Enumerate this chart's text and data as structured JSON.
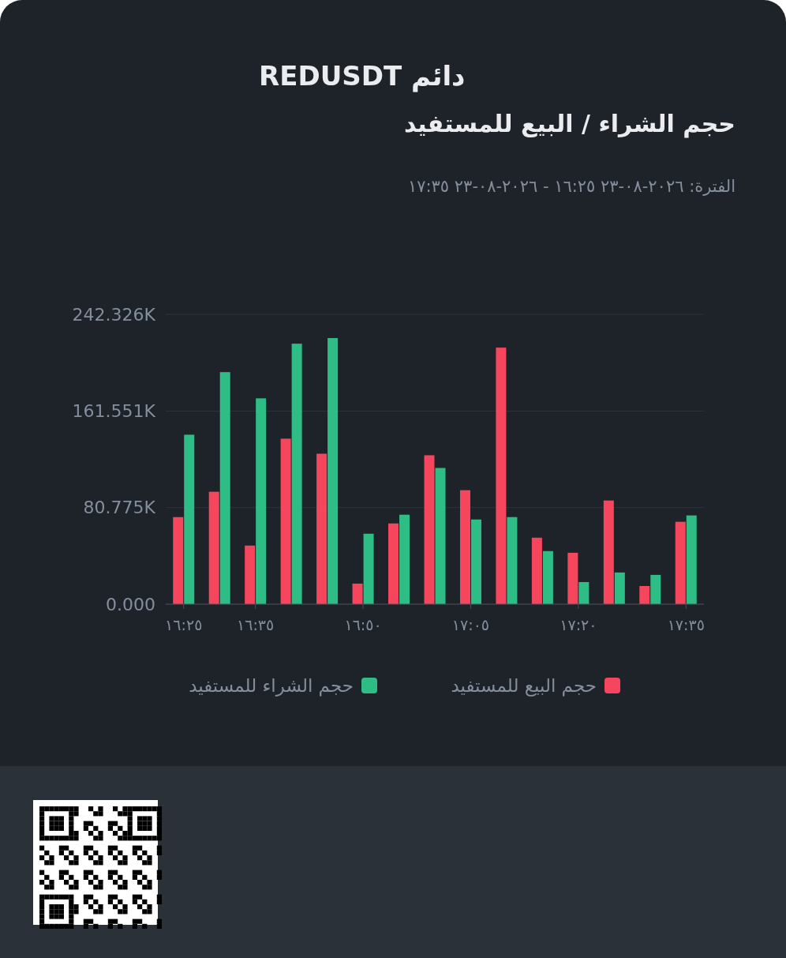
{
  "chart_data": {
    "type": "bar",
    "title": "دائم REDUSDT",
    "subtitle": "حجم الشراء / البيع للمستفيد",
    "annotations": [
      "الفترة: ٢٠٢٦-٠٨-٢٣ ١٦:٢٥ - ٢٠٢٦-٠٨-٢٣ ١٧:٣٥"
    ],
    "categories": [
      "١٦:٢٥",
      null,
      "١٦:٣٥",
      null,
      null,
      "١٦:٥٠",
      null,
      null,
      "١٧:٠٥",
      null,
      null,
      "١٧:٢٠",
      null,
      null,
      "١٧:٣٥"
    ],
    "series": [
      {
        "name": "حجم البيع للمستفيد",
        "color": "#f6465d",
        "values": [
          72.8,
          94.0,
          49.0,
          138.4,
          125.8,
          17.2,
          67.5,
          124.5,
          95.3,
          214.5,
          55.6,
          43.0,
          86.7,
          15.2,
          68.9
        ]
      },
      {
        "name": "حجم الشراء للمستفيد",
        "color": "#2ebd85",
        "values": [
          141.7,
          194.0,
          172.1,
          217.8,
          222.5,
          58.9,
          74.8,
          113.9,
          70.8,
          72.8,
          44.4,
          18.5,
          26.5,
          24.5,
          74.2
        ]
      }
    ],
    "ylim": [
      0,
      242.326
    ],
    "yticks": [
      {
        "value": 0,
        "label": "0.000"
      },
      {
        "value": 80.775,
        "label": "80.775K"
      },
      {
        "value": 161.551,
        "label": "161.551K"
      },
      {
        "value": 242.326,
        "label": "242.326K"
      }
    ],
    "grid": "y",
    "legend": "bottom"
  }
}
